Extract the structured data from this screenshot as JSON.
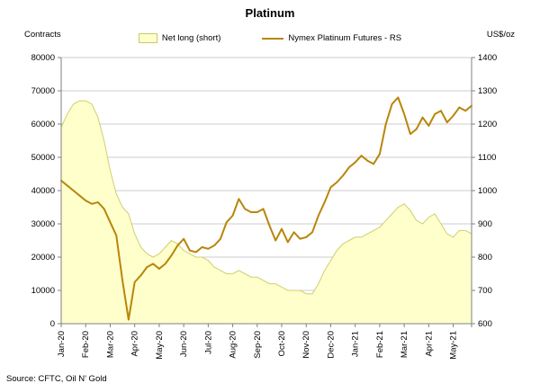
{
  "chart_data": {
    "type": "area+line",
    "title": "Platinum",
    "source": "Source: CFTC, Oil N' Gold",
    "grid": "horizontal",
    "legend_position": "top",
    "y_left": {
      "label": "Contracts",
      "min": 0,
      "max": 80000,
      "ticks": [
        0,
        10000,
        20000,
        30000,
        40000,
        50000,
        60000,
        70000,
        80000
      ]
    },
    "y_right": {
      "label": "US$/oz",
      "min": 600,
      "max": 1400,
      "ticks": [
        600,
        700,
        800,
        900,
        1000,
        1100,
        1200,
        1300,
        1400
      ]
    },
    "x": {
      "categories": [
        "Jan-20",
        "Feb-20",
        "Mar-20",
        "Apr-20",
        "May-20",
        "Jun-20",
        "Jul-20",
        "Aug-20",
        "Sep-20",
        "Oct-20",
        "Nov-20",
        "Dec-20",
        "Jan-21",
        "Feb-21",
        "Mar-21",
        "Apr-21",
        "May-21"
      ],
      "points_per_month": 4
    },
    "series": [
      {
        "name": "Net long (short)",
        "type": "area",
        "axis": "left",
        "color": "#FFFFCC",
        "border": "#CFCF6E",
        "values": [
          59000,
          63000,
          66000,
          67000,
          67000,
          66000,
          62000,
          55000,
          46000,
          39000,
          35000,
          33000,
          27000,
          23000,
          21000,
          20000,
          21000,
          23000,
          25000,
          24000,
          22000,
          21000,
          20000,
          20000,
          19000,
          17000,
          16000,
          15000,
          15000,
          16000,
          15000,
          14000,
          14000,
          13000,
          12000,
          12000,
          11000,
          10000,
          10000,
          10000,
          9000,
          9000,
          12000,
          16000,
          19000,
          22000,
          24000,
          25000,
          26000,
          26000,
          27000,
          28000,
          29000,
          31000,
          33000,
          35000,
          36000,
          34000,
          31000,
          30000,
          32000,
          33000,
          30000,
          27000,
          26000,
          28000,
          28000,
          27000
        ]
      },
      {
        "name": "Nymex Platinum Futures - RS",
        "type": "line",
        "axis": "right",
        "color": "#B8860B",
        "values": [
          1030,
          1015,
          1000,
          985,
          970,
          960,
          965,
          945,
          905,
          865,
          730,
          612,
          725,
          745,
          770,
          780,
          765,
          780,
          805,
          835,
          855,
          820,
          815,
          830,
          825,
          835,
          855,
          905,
          925,
          975,
          945,
          935,
          935,
          945,
          895,
          850,
          885,
          845,
          875,
          855,
          860,
          875,
          925,
          965,
          1010,
          1025,
          1045,
          1070,
          1085,
          1105,
          1090,
          1080,
          1110,
          1200,
          1260,
          1280,
          1230,
          1170,
          1185,
          1220,
          1195,
          1230,
          1240,
          1205,
          1225,
          1250,
          1240,
          1255
        ]
      }
    ]
  }
}
